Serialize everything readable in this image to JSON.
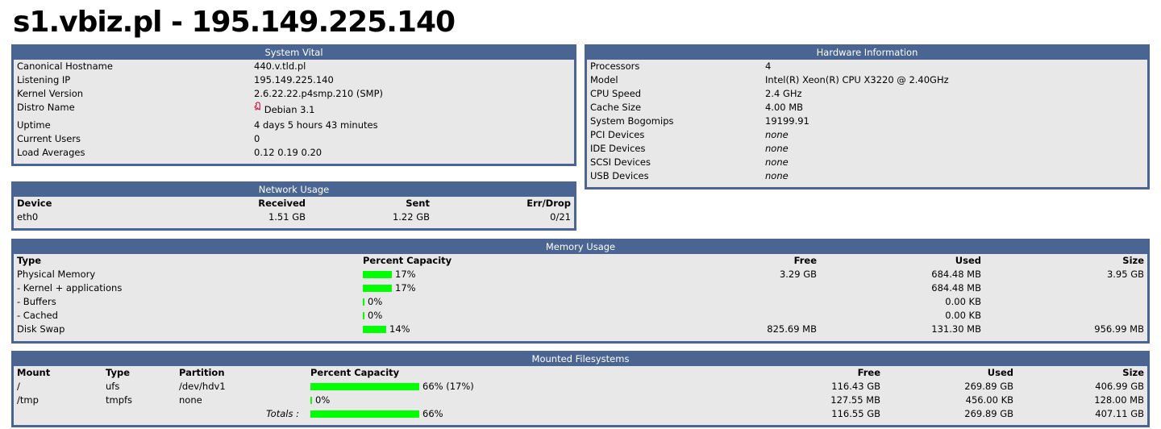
{
  "title": "s1.vbiz.pl - 195.149.225.140",
  "system_vital": {
    "title": "System Vital",
    "rows": [
      {
        "label": "Canonical Hostname",
        "value": "440.v.tld.pl"
      },
      {
        "label": "Listening IP",
        "value": "195.149.225.140"
      },
      {
        "label": "Kernel Version",
        "value": "2.6.22.22.p4smp.210 (SMP)"
      },
      {
        "label": "Distro Name",
        "value": "Debian 3.1",
        "icon": "debian-swirl-icon"
      },
      {
        "label": "Uptime",
        "value": "4 days 5 hours 43 minutes"
      },
      {
        "label": "Current Users",
        "value": "0"
      },
      {
        "label": "Load Averages",
        "value": "0.12 0.19 0.20"
      }
    ]
  },
  "hardware": {
    "title": "Hardware Information",
    "rows": [
      {
        "label": "Processors",
        "value": "4"
      },
      {
        "label": "Model",
        "value": "Intel(R) Xeon(R) CPU X3220 @ 2.40GHz"
      },
      {
        "label": "CPU Speed",
        "value": "2.4 GHz"
      },
      {
        "label": "Cache Size",
        "value": "4.00 MB"
      },
      {
        "label": "System Bogomips",
        "value": "19199.91"
      },
      {
        "label": "PCI Devices",
        "value": "none"
      },
      {
        "label": "IDE Devices",
        "value": "none"
      },
      {
        "label": "SCSI Devices",
        "value": "none"
      },
      {
        "label": "USB Devices",
        "value": "none"
      }
    ]
  },
  "network": {
    "title": "Network Usage",
    "headers": {
      "device": "Device",
      "received": "Received",
      "sent": "Sent",
      "errdrop": "Err/Drop"
    },
    "rows": [
      {
        "device": "eth0",
        "received": "1.51 GB",
        "sent": "1.22 GB",
        "errdrop": "0/21"
      }
    ]
  },
  "memory": {
    "title": "Memory Usage",
    "headers": {
      "type": "Type",
      "percent": "Percent Capacity",
      "free": "Free",
      "used": "Used",
      "size": "Size"
    },
    "rows": [
      {
        "type": "Physical Memory",
        "percent": 17,
        "percent_label": "17%",
        "free": "3.29 GB",
        "used": "684.48 MB",
        "size": "3.95 GB"
      },
      {
        "type": "- Kernel + applications",
        "percent": 17,
        "percent_label": "17%",
        "free": "",
        "used": "684.48 MB",
        "size": ""
      },
      {
        "type": "- Buffers",
        "percent": 0,
        "percent_label": "0%",
        "free": "",
        "used": "0.00 KB",
        "size": ""
      },
      {
        "type": "- Cached",
        "percent": 0,
        "percent_label": "0%",
        "free": "",
        "used": "0.00 KB",
        "size": ""
      },
      {
        "type": "Disk Swap",
        "percent": 14,
        "percent_label": "14%",
        "free": "825.69 MB",
        "used": "131.30 MB",
        "size": "956.99 MB"
      }
    ]
  },
  "filesystems": {
    "title": "Mounted Filesystems",
    "headers": {
      "mount": "Mount",
      "type": "Type",
      "partition": "Partition",
      "percent": "Percent Capacity",
      "free": "Free",
      "used": "Used",
      "size": "Size"
    },
    "rows": [
      {
        "mount": "/",
        "type": "ufs",
        "partition": "/dev/hdv1",
        "percent": 66,
        "percent_label": "66% (17%)",
        "free": "116.43 GB",
        "used": "269.89 GB",
        "size": "406.99 GB"
      },
      {
        "mount": "/tmp",
        "type": "tmpfs",
        "partition": "none",
        "percent": 0,
        "percent_label": "0%",
        "free": "127.55 MB",
        "used": "456.00 KB",
        "size": "128.00 MB"
      }
    ],
    "totals": {
      "label": "Totals :",
      "percent": 66,
      "percent_label": "66%",
      "free": "116.55 GB",
      "used": "269.89 GB",
      "size": "407.11 GB"
    }
  },
  "colors": {
    "header_bg": "#4a6591",
    "panel_bg": "#e8e8e8",
    "bar": "#00ff00",
    "debian_icon": "#c70036"
  }
}
